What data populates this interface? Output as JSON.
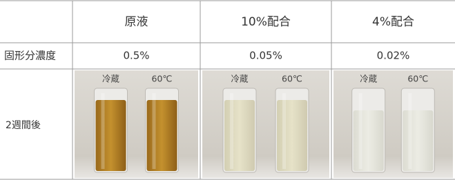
{
  "table": {
    "columns": [
      "原液",
      "10%配合",
      "4%配合"
    ],
    "rows": [
      {
        "label": "固形分濃度",
        "cells": [
          "0.5%",
          "0.05%",
          "0.02%"
        ]
      },
      {
        "label": "2週間後",
        "photo_labels": [
          [
            "冷蔵",
            "60℃"
          ],
          [
            "冷蔵",
            "60℃"
          ],
          [
            "冷蔵",
            "60℃"
          ]
        ]
      }
    ]
  }
}
